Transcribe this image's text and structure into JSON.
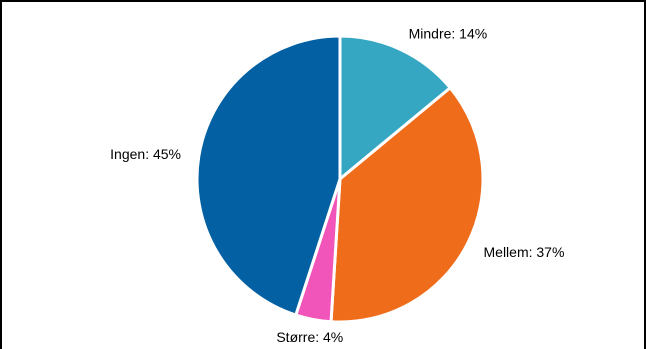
{
  "chart_data": {
    "type": "pie",
    "title": "",
    "start_angle_deg": 0,
    "direction": "clockwise",
    "legend": "none",
    "slices": [
      {
        "label": "Mindre: 14%",
        "name": "Mindre",
        "value": 14,
        "color": "#35a7c3"
      },
      {
        "label": "Mellem: 37%",
        "name": "Mellem",
        "value": 37,
        "color": "#ee6c1a"
      },
      {
        "label": "Større: 4%",
        "name": "Større",
        "value": 4,
        "color": "#f255b9"
      },
      {
        "label": "Ingen: 45%",
        "name": "Ingen",
        "value": 45,
        "color": "#0360a2"
      }
    ]
  }
}
